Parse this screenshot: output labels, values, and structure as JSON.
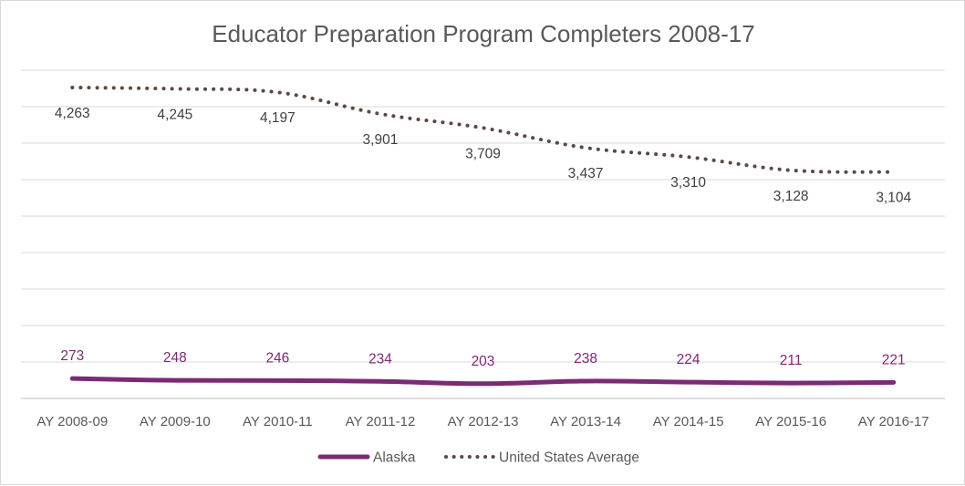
{
  "chart_data": {
    "type": "line",
    "title": "Educator Preparation Program Completers 2008-17",
    "categories": [
      "AY 2008-09",
      "AY 2009-10",
      "AY 2010-11",
      "AY 2011-12",
      "AY 2012-13",
      "AY 2013-14",
      "AY 2014-15",
      "AY 2015-16",
      "AY 2016-17"
    ],
    "ylim": [
      0,
      4500
    ],
    "grid": true,
    "legend_position": "bottom",
    "series": [
      {
        "name": "Alaska",
        "values": [
          273,
          248,
          246,
          234,
          203,
          238,
          224,
          211,
          221
        ],
        "labels": [
          "273",
          "248",
          "246",
          "234",
          "203",
          "238",
          "224",
          "211",
          "221"
        ],
        "color": "#7b2a74",
        "style": "solid"
      },
      {
        "name": "United States Average",
        "values": [
          4263,
          4245,
          4197,
          3901,
          3709,
          3437,
          3310,
          3128,
          3104
        ],
        "labels": [
          "4,263",
          "4,245",
          "4,197",
          "3,901",
          "3,709",
          "3,437",
          "3,310",
          "3,128",
          "3,104"
        ],
        "color": "#5a4a42",
        "style": "dotted"
      }
    ]
  }
}
